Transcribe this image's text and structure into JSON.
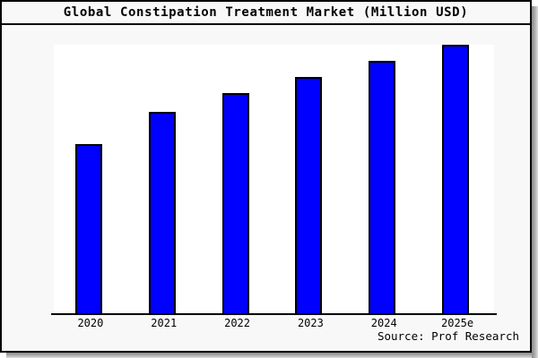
{
  "chart_data": {
    "type": "bar",
    "title": "Global Constipation Treatment Market (Million USD)",
    "categories": [
      "2020",
      "2021",
      "2022",
      "2023",
      "2024",
      "2025e"
    ],
    "values": [
      63,
      75,
      82,
      88,
      94,
      100
    ],
    "xlabel": "",
    "ylabel": "",
    "ylim": [
      0,
      100
    ],
    "y_axis_labels_visible": false,
    "grid": false,
    "legend_position": "none",
    "bar_color": "#0000ff",
    "bar_border_color": "#000000",
    "source": "Source: Prof Research"
  },
  "colors": {
    "frame_background": "#f8f8f8",
    "plot_background": "#ffffff",
    "frame_border": "#000000",
    "shadow": "#8a8a8a"
  }
}
